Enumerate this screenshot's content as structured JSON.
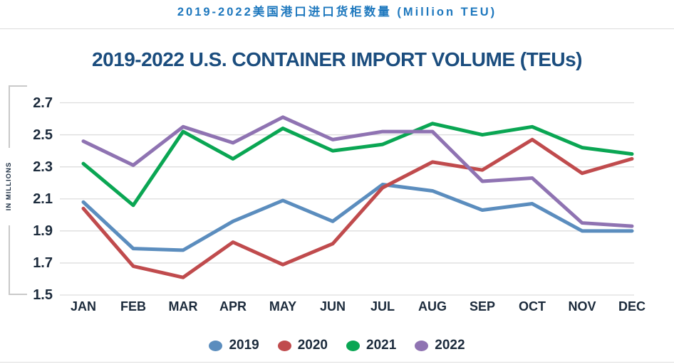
{
  "page": {
    "top_title": "2019-2022美国港口进口货柜数量 (Million TEU)"
  },
  "chart_data": {
    "type": "line",
    "title": "2019-2022 U.S. CONTAINER IMPORT VOLUME (TEUs)",
    "ylabel": "IN MILLIONS",
    "xlabel": "",
    "ylim": [
      1.5,
      2.7
    ],
    "y_ticks": [
      "2.7",
      "2.5",
      "2.3",
      "2.1",
      "1.9",
      "1.7",
      "1.5"
    ],
    "grid": "horizontal",
    "legend_position": "bottom",
    "categories": [
      "JAN",
      "FEB",
      "MAR",
      "APR",
      "MAY",
      "JUN",
      "JUL",
      "AUG",
      "SEP",
      "OCT",
      "NOV",
      "DEC"
    ],
    "series": [
      {
        "name": "2019",
        "color": "#5B8DBE",
        "values": [
          2.08,
          1.79,
          1.78,
          1.96,
          2.09,
          1.96,
          2.19,
          2.15,
          2.03,
          2.07,
          1.9,
          1.9
        ]
      },
      {
        "name": "2020",
        "color": "#C04B4D",
        "values": [
          2.04,
          1.68,
          1.61,
          1.83,
          1.69,
          1.82,
          2.17,
          2.33,
          2.28,
          2.47,
          2.26,
          2.35
        ]
      },
      {
        "name": "2021",
        "color": "#0AA653",
        "values": [
          2.32,
          2.06,
          2.52,
          2.35,
          2.54,
          2.4,
          2.44,
          2.57,
          2.5,
          2.55,
          2.42,
          2.38
        ]
      },
      {
        "name": "2022",
        "color": "#8F73B2",
        "values": [
          2.46,
          2.31,
          2.55,
          2.45,
          2.61,
          2.47,
          2.52,
          2.52,
          2.21,
          2.23,
          1.95,
          1.93
        ]
      }
    ],
    "colors": {
      "top_title": "#1E78BE",
      "chart_title": "#1B4D7E",
      "axis_text": "#1C2B3C",
      "gridline": "#DDDDDD"
    }
  }
}
